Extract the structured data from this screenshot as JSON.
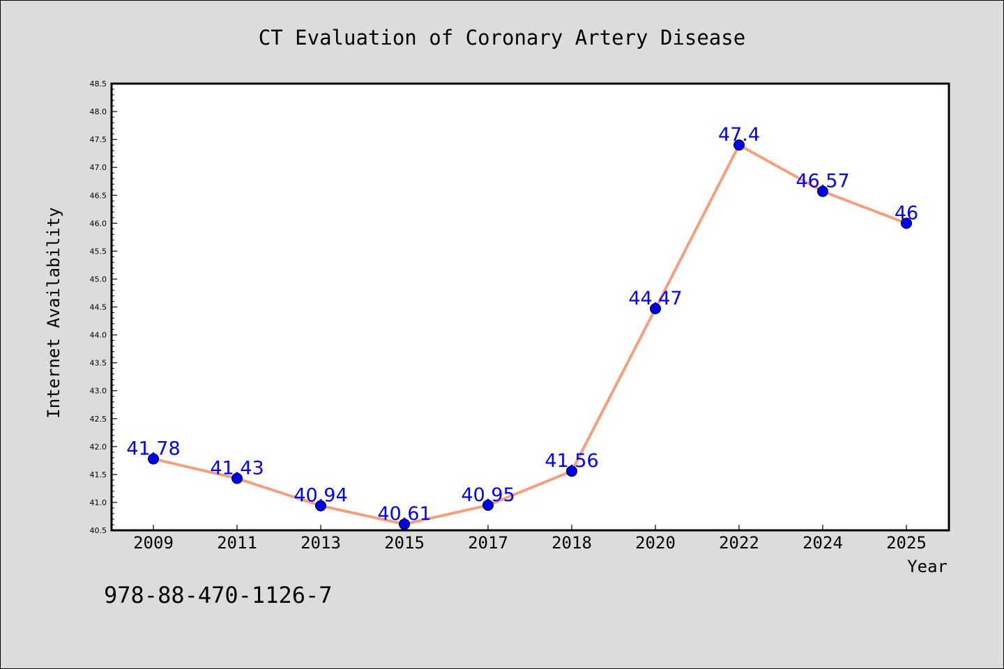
{
  "chart_data": {
    "type": "line",
    "title": "CT Evaluation of Coronary Artery Disease",
    "xlabel": "Year",
    "ylabel": "Internet Availability",
    "categories": [
      "2009",
      "2011",
      "2013",
      "2015",
      "2017",
      "2018",
      "2020",
      "2022",
      "2024",
      "2025"
    ],
    "series": [
      {
        "values": [
          41.78,
          41.43,
          40.94,
          40.61,
          40.95,
          41.56,
          44.47,
          47.4,
          46.57,
          46
        ],
        "labels": [
          "41.78",
          "41.43",
          "40.94",
          "40.61",
          "40.95",
          "41.56",
          "44.47",
          "47.4",
          "46.57",
          "46"
        ],
        "line_color": "#f4a07e",
        "marker_color": "#0000ee"
      }
    ],
    "ylim": [
      40.5,
      48.5
    ],
    "yticks": [
      "40.5",
      "41.0",
      "41.5",
      "42.0",
      "42.5",
      "43.0",
      "43.5",
      "44.0",
      "44.5",
      "45.0",
      "45.5",
      "46.0",
      "46.5",
      "47.0",
      "47.5",
      "48.0",
      "48.5"
    ],
    "grid": false,
    "label_color": "#0000ff",
    "annotation": "978-88-470-1126-7"
  }
}
